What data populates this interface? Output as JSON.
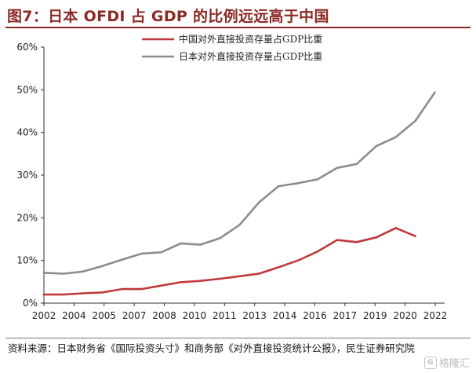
{
  "header": {
    "title": "图7：日本 OFDI 占 GDP 的比例远远高于中国"
  },
  "footer": {
    "source": "资料来源：日本财务省《国际投资头寸》和商务部《对外直接投资统计公报》，民生证券研究院",
    "watermark": "格隆汇"
  },
  "colors": {
    "title": "#8a2a24",
    "china": "#c0393b",
    "japan": "#8c8c8c"
  },
  "chart_data": {
    "type": "line",
    "title": "",
    "xlabel": "",
    "ylabel": "",
    "ylim": [
      0,
      60
    ],
    "yticks": [
      "0%",
      "10%",
      "20%",
      "30%",
      "40%",
      "50%",
      "60%"
    ],
    "xlim": [
      2002,
      2022.5
    ],
    "xticks": [
      "2002",
      "2004",
      "2005",
      "2007",
      "2008",
      "2010",
      "2011",
      "2013",
      "2014",
      "2016",
      "2017",
      "2019",
      "2020",
      "2022"
    ],
    "legend_position": "top-left",
    "grid": false,
    "series": [
      {
        "name": "中国对外直接投资存量占GDP比重",
        "color": "#c0393b",
        "x": [
          2002,
          2003,
          2004,
          2005,
          2006,
          2007,
          2008,
          2009,
          2010,
          2011,
          2012,
          2013,
          2014,
          2015,
          2016,
          2017,
          2018,
          2019,
          2020,
          2021
        ],
        "y": [
          2.0,
          2.0,
          2.3,
          2.5,
          3.3,
          3.3,
          4.1,
          4.9,
          5.2,
          5.7,
          6.3,
          6.9,
          8.4,
          10.0,
          12.1,
          14.8,
          14.3,
          15.4,
          17.6,
          15.7
        ]
      },
      {
        "name": "日本对外直接投资存量占GDP比重",
        "color": "#8c8c8c",
        "x": [
          2002,
          2003,
          2004,
          2005,
          2006,
          2007,
          2008,
          2009,
          2010,
          2011,
          2012,
          2013,
          2014,
          2015,
          2016,
          2017,
          2018,
          2019,
          2020,
          2021,
          2022
        ],
        "y": [
          7.1,
          6.9,
          7.4,
          8.7,
          10.2,
          11.6,
          11.9,
          14.0,
          13.7,
          15.2,
          18.3,
          23.6,
          27.4,
          28.1,
          29.0,
          31.7,
          32.6,
          36.8,
          38.9,
          42.7,
          49.4
        ]
      }
    ]
  }
}
